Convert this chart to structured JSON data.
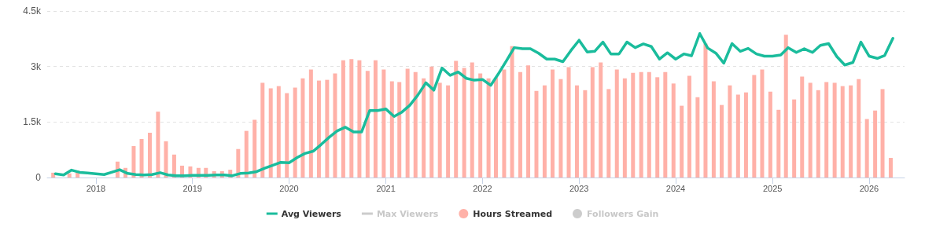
{
  "chart_data": {
    "type": "bar",
    "x": [
      "2017-08",
      "2017-09",
      "2017-10",
      "2017-11",
      "2017-12",
      "2018-01",
      "2018-02",
      "2018-03",
      "2018-04",
      "2018-05",
      "2018-06",
      "2018-07",
      "2018-08",
      "2018-09",
      "2018-10",
      "2018-11",
      "2018-12",
      "2019-01",
      "2019-02",
      "2019-03",
      "2019-04",
      "2019-05",
      "2019-06",
      "2019-07",
      "2019-08",
      "2019-09",
      "2019-10",
      "2019-11",
      "2019-12",
      "2020-01",
      "2020-02",
      "2020-03",
      "2020-04",
      "2020-05",
      "2020-06",
      "2020-07",
      "2020-08",
      "2020-09",
      "2020-10",
      "2020-11",
      "2020-12",
      "2021-01",
      "2021-02",
      "2021-03",
      "2021-04",
      "2021-05",
      "2021-06",
      "2021-07",
      "2021-08",
      "2021-09",
      "2021-10",
      "2021-11",
      "2021-12",
      "2022-01",
      "2022-02",
      "2022-03",
      "2022-04",
      "2022-05",
      "2022-06",
      "2022-07",
      "2022-08",
      "2022-09",
      "2022-10",
      "2022-11",
      "2022-12",
      "2023-01",
      "2023-02",
      "2023-03",
      "2023-04",
      "2023-05",
      "2023-06",
      "2023-07",
      "2023-08",
      "2023-09",
      "2023-10",
      "2023-11",
      "2023-12",
      "2024-01",
      "2024-02",
      "2024-03",
      "2024-04",
      "2024-05",
      "2024-06",
      "2024-07",
      "2024-08",
      "2024-09",
      "2024-10",
      "2024-11",
      "2024-12",
      "2025-01",
      "2025-02",
      "2025-03",
      "2025-04",
      "2025-05",
      "2025-06",
      "2025-07",
      "2025-08",
      "2025-09",
      "2025-10",
      "2025-11",
      "2025-12",
      "2026-01",
      "2026-02",
      "2026-03",
      "2026-04"
    ],
    "series": [
      {
        "name": "Avg Viewers",
        "type": "line",
        "color": "#1abc9c",
        "values": [
          100,
          70,
          200,
          140,
          120,
          100,
          80,
          140,
          210,
          110,
          80,
          70,
          80,
          130,
          70,
          50,
          50,
          60,
          60,
          60,
          70,
          70,
          50,
          110,
          120,
          160,
          250,
          330,
          410,
          400,
          540,
          650,
          710,
          890,
          1090,
          1260,
          1360,
          1230,
          1230,
          1810,
          1810,
          1850,
          1650,
          1760,
          1950,
          2220,
          2560,
          2360,
          2960,
          2760,
          2850,
          2680,
          2630,
          2650,
          2490,
          2790,
          3150,
          3510,
          3480,
          3480,
          3360,
          3200,
          3200,
          3130,
          3430,
          3710,
          3390,
          3410,
          3660,
          3340,
          3340,
          3660,
          3510,
          3610,
          3540,
          3200,
          3370,
          3200,
          3340,
          3290,
          3890,
          3500,
          3360,
          3090,
          3620,
          3410,
          3490,
          3340,
          3280,
          3280,
          3310,
          3510,
          3380,
          3480,
          3380,
          3570,
          3620,
          3270,
          3040,
          3110,
          3660,
          3280,
          3220,
          3300,
          3760
        ]
      },
      {
        "name": "Max Viewers",
        "type": "line",
        "color": "#cccccc",
        "values": [
          null,
          null,
          null,
          null,
          null,
          null,
          null,
          null,
          null,
          null,
          null,
          null,
          null,
          null,
          null,
          null,
          null,
          null,
          null,
          null,
          null,
          null,
          null,
          null,
          null,
          null,
          null,
          null,
          null,
          null,
          null,
          null,
          null,
          null,
          null,
          null,
          null,
          null,
          null,
          null,
          null,
          null,
          null,
          null,
          null,
          null,
          null,
          null,
          null,
          null,
          null,
          null,
          null,
          null,
          null,
          null,
          null,
          null,
          null,
          null,
          null,
          null,
          null,
          null,
          null,
          null,
          null,
          null,
          null,
          null,
          null,
          null,
          null,
          null,
          null,
          null,
          null,
          null,
          null,
          null,
          null,
          null,
          null,
          null,
          null,
          null,
          null,
          null,
          null,
          null,
          null,
          null,
          null,
          null,
          null,
          null,
          null,
          null,
          null,
          null,
          null,
          null,
          null,
          null,
          null
        ]
      },
      {
        "name": "Hours Streamed",
        "color": "#ffb1a8",
        "values": [
          130,
          null,
          110,
          190,
          null,
          null,
          null,
          null,
          430,
          260,
          850,
          1040,
          1210,
          1780,
          980,
          620,
          320,
          300,
          260,
          260,
          170,
          170,
          210,
          770,
          1260,
          1560,
          2560,
          2410,
          2470,
          2280,
          2430,
          2680,
          2920,
          2620,
          2640,
          2810,
          3170,
          3200,
          3170,
          2880,
          3170,
          2920,
          2600,
          2580,
          2940,
          2850,
          2680,
          3000,
          2560,
          2490,
          3150,
          2960,
          3110,
          2810,
          2680,
          2700,
          2920,
          3550,
          2850,
          3030,
          2340,
          2490,
          2920,
          2660,
          2980,
          2490,
          2360,
          2980,
          3110,
          2390,
          2920,
          2680,
          2830,
          2850,
          2850,
          2710,
          2850,
          2540,
          1940,
          2750,
          2170,
          3620,
          2600,
          1960,
          2490,
          2240,
          2300,
          2770,
          2920,
          2320,
          1830,
          3860,
          2110,
          2730,
          2560,
          2360,
          2580,
          2560,
          2470,
          2490,
          2660,
          1580,
          1810,
          2390,
          530
        ]
      },
      {
        "name": "Followers Gain",
        "color": "#cccccc",
        "values": [
          null,
          null,
          null,
          null,
          null,
          null,
          null,
          null,
          null,
          null,
          null,
          null,
          null,
          null,
          null,
          null,
          null,
          null,
          null,
          null,
          null,
          null,
          null,
          null,
          null,
          null,
          null,
          null,
          null,
          null,
          null,
          null,
          null,
          null,
          null,
          null,
          null,
          null,
          null,
          null,
          null,
          null,
          null,
          null,
          null,
          null,
          null,
          null,
          null,
          null,
          null,
          null,
          null,
          null,
          null,
          null,
          null,
          null,
          null,
          null,
          null,
          null,
          null,
          null,
          null,
          null,
          null,
          null,
          null,
          null,
          null,
          null,
          null,
          null,
          null,
          null,
          null,
          null,
          null,
          null,
          null,
          null,
          null,
          null,
          null,
          null,
          null,
          null,
          null,
          null,
          null,
          null,
          null,
          null,
          null,
          null,
          null,
          null,
          null,
          null,
          null,
          null,
          null,
          null,
          null
        ]
      }
    ],
    "xlim": [
      "2017-07-01",
      "2026-05-15"
    ],
    "xticks": [
      "2018",
      "2019",
      "2020",
      "2021",
      "2022",
      "2023",
      "2024",
      "2025",
      "2026"
    ],
    "ylim": [
      0,
      4500
    ],
    "yticks": [
      0,
      {
        "value": 1500,
        "label": "1.5k"
      },
      {
        "value": 3000,
        "label": "3k"
      },
      {
        "value": 4500,
        "label": "4.5k"
      }
    ],
    "grid": "y",
    "legend": "bottom",
    "marker": "none",
    "line_style": "solid"
  }
}
